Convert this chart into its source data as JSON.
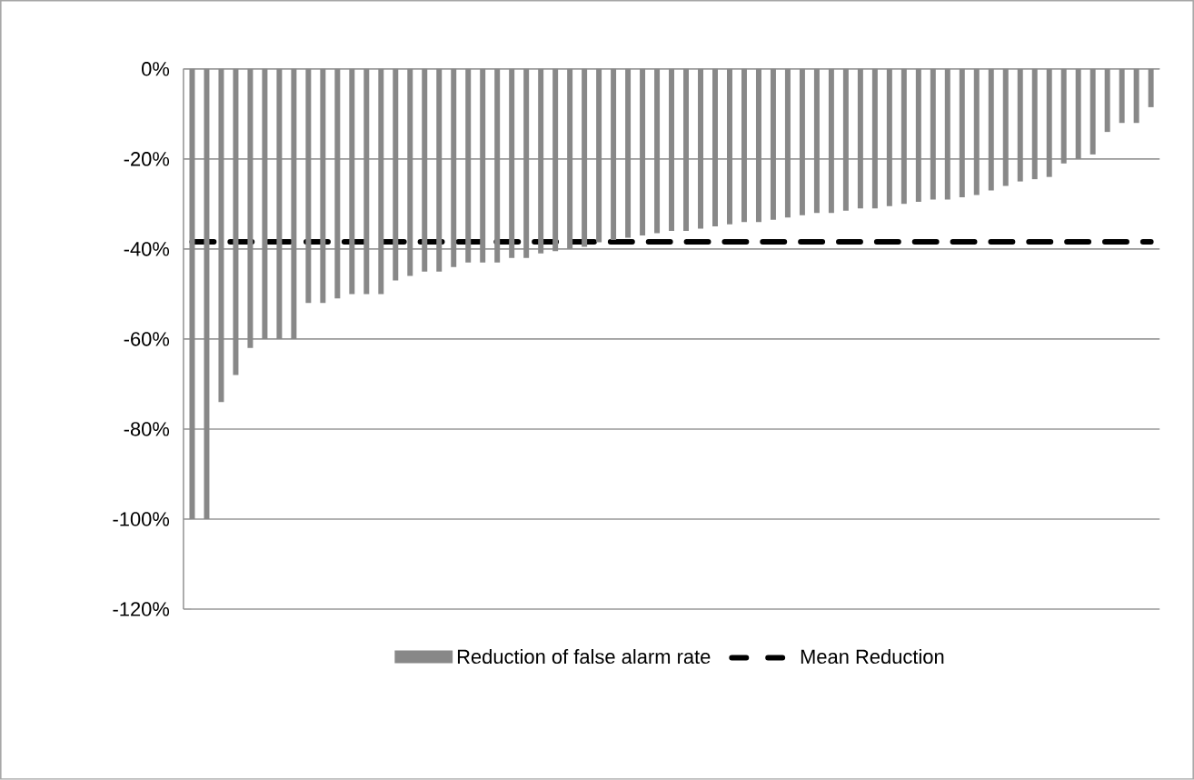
{
  "chart_data": {
    "type": "bar",
    "categories": [
      null,
      null,
      null,
      null,
      null,
      null,
      null,
      null,
      null,
      null,
      null,
      null,
      null,
      null,
      null,
      null,
      null,
      null,
      null,
      null,
      null,
      null,
      null,
      null,
      null,
      null,
      null,
      null,
      null,
      null,
      null,
      null,
      null,
      null,
      null,
      null,
      null,
      null,
      null,
      null,
      null,
      null,
      null,
      null,
      null,
      null,
      null,
      null,
      null,
      null,
      null,
      null,
      null,
      null,
      null,
      null,
      null,
      null,
      null,
      null,
      null,
      null,
      null,
      null,
      null,
      null,
      null
    ],
    "series": [
      {
        "name": "Reduction of false alarm rate",
        "color": "#888888",
        "values": [
          -100,
          -100,
          -74,
          -68,
          -62,
          -60,
          -60,
          -60,
          -52,
          -52,
          -51,
          -50,
          -50,
          -50,
          -47,
          -46,
          -45,
          -45,
          -44,
          -43,
          -43,
          -43,
          -42,
          -42,
          -41,
          -40.5,
          -40,
          -39.5,
          -38.5,
          -38,
          -37.5,
          -37,
          -36.5,
          -36,
          -36,
          -35.5,
          -35,
          -34.5,
          -34,
          -34,
          -33.5,
          -33,
          -32.5,
          -32,
          -32,
          -31.5,
          -31,
          -31,
          -30.5,
          -30,
          -29.5,
          -29,
          -29,
          -28.5,
          -28,
          -27,
          -26,
          -25,
          -24.5,
          -24,
          -21,
          -20,
          -19,
          -14,
          -12,
          -12,
          -8.5
        ]
      },
      {
        "name": "Mean Reduction",
        "type": "line",
        "color": "#000000",
        "line_style": "dashed",
        "values": [
          -38.4,
          -38.4,
          -38.4,
          -38.4,
          -38.4,
          -38.4,
          -38.4,
          -38.4,
          -38.4,
          -38.4,
          -38.4,
          -38.4,
          -38.4,
          -38.4,
          -38.4,
          -38.4,
          -38.4,
          -38.4,
          -38.4,
          -38.4,
          -38.4,
          -38.4,
          -38.4,
          -38.4,
          -38.4,
          -38.4,
          -38.4,
          -38.4,
          -38.4,
          -38.4,
          -38.4,
          -38.4,
          -38.4,
          -38.4,
          -38.4,
          -38.4,
          -38.4,
          -38.4,
          -38.4,
          -38.4,
          -38.4,
          -38.4,
          -38.4,
          -38.4,
          -38.4,
          -38.4,
          -38.4,
          -38.4,
          -38.4,
          -38.4,
          -38.4,
          -38.4,
          -38.4,
          -38.4,
          -38.4,
          -38.4,
          -38.4,
          -38.4,
          -38.4,
          -38.4,
          -38.4,
          -38.4,
          -38.4,
          -38.4,
          -38.4,
          -38.4,
          -38.4
        ]
      }
    ],
    "ylim": [
      -120,
      0
    ],
    "yticks": [
      {
        "value": 0,
        "label": "0%"
      },
      {
        "value": -20,
        "label": "-20%"
      },
      {
        "value": -40,
        "label": "-40%"
      },
      {
        "value": -60,
        "label": "-60%"
      },
      {
        "value": -80,
        "label": "-80%"
      },
      {
        "value": -100,
        "label": "-100%"
      },
      {
        "value": -120,
        "label": "-120%"
      }
    ],
    "grid": "y",
    "legend": "bottom",
    "tick_labels": "y"
  }
}
